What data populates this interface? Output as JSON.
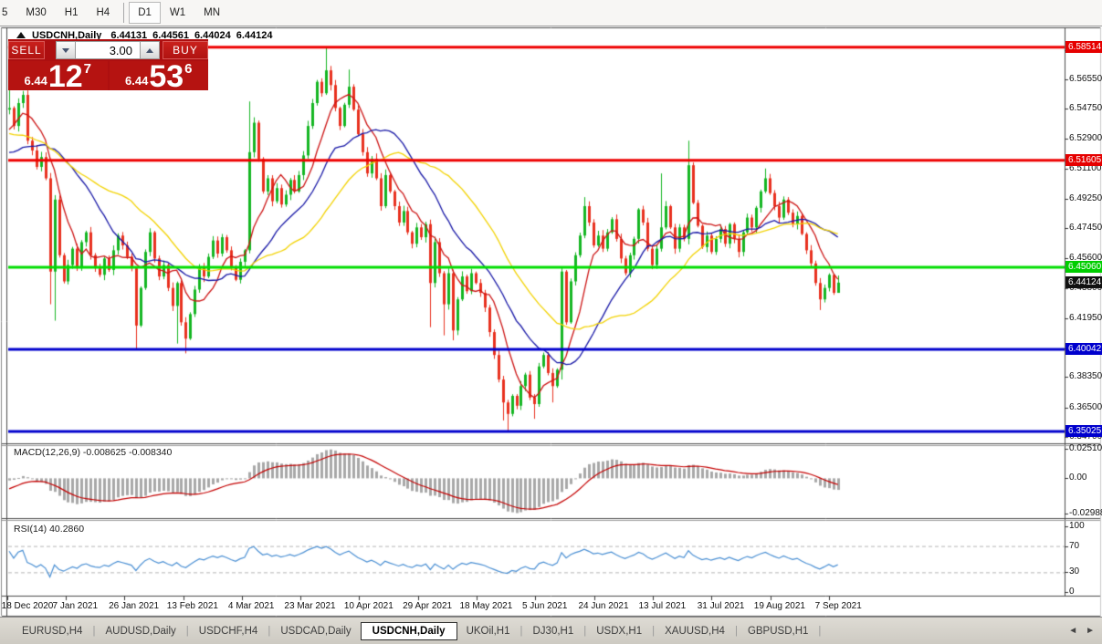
{
  "toolbar": {
    "items": [
      "5",
      "M30",
      "H1",
      "H4",
      "|",
      "D1",
      "W1",
      "MN"
    ],
    "active": "D1"
  },
  "chart_header": {
    "symbol": "USDCNH,Daily",
    "open": "6.44131",
    "high": "6.44561",
    "low": "6.44024",
    "close": "6.44124"
  },
  "trade_panel": {
    "sell_label": "SELL",
    "buy_label": "BUY",
    "volume": "3.00",
    "sell_price": {
      "prefix": "6.44",
      "main": "12",
      "pip": "7"
    },
    "buy_price": {
      "prefix": "6.44",
      "main": "53",
      "pip": "6"
    }
  },
  "price_axis": {
    "ticks": [
      "6.58350",
      "6.56550",
      "6.54750",
      "6.52900",
      "6.51100",
      "6.49250",
      "6.47450",
      "6.45600",
      "6.43800",
      "6.41950",
      "6.40100",
      "6.38350",
      "6.36500",
      "6.34700"
    ]
  },
  "level_badges": [
    {
      "text": "6.58514",
      "price": 6.58514,
      "color": "#e60000",
      "kind": "resistance"
    },
    {
      "text": "6.51605",
      "price": 6.51605,
      "color": "#e60000",
      "kind": "resistance"
    },
    {
      "text": "6.45060",
      "price": 6.4506,
      "color": "#00ce00",
      "kind": "pivot"
    },
    {
      "text": "6.44124",
      "price": 6.44124,
      "color": "#111111",
      "kind": "current"
    },
    {
      "text": "6.40042",
      "price": 6.40042,
      "color": "#0000cd",
      "kind": "support"
    },
    {
      "text": "6.35025",
      "price": 6.35025,
      "color": "#0000cd",
      "kind": "support"
    }
  ],
  "macd_panel": {
    "label": "MACD(12,26,9) -0.008625 -0.008340",
    "ticks": [
      {
        "text": "0.02510",
        "value": 0.0251
      },
      {
        "text": "0.00",
        "value": 0
      },
      {
        "text": "-0.02988",
        "value": -0.02988
      }
    ]
  },
  "rsi_panel": {
    "label": "RSI(14) 40.2860",
    "ticks": [
      {
        "text": "100",
        "value": 100
      },
      {
        "text": "70",
        "value": 70
      },
      {
        "text": "30",
        "value": 30
      },
      {
        "text": "0",
        "value": 0
      }
    ],
    "dashed_levels": [
      70,
      30
    ]
  },
  "date_axis": {
    "labels": [
      "18 Dec 2020",
      "7 Jan 2021",
      "26 Jan 2021",
      "13 Feb 2021",
      "4 Mar 2021",
      "23 Mar 2021",
      "10 Apr 2021",
      "29 Apr 2021",
      "18 May 2021",
      "5 Jun 2021",
      "24 Jun 2021",
      "13 Jul 2021",
      "31 Jul 2021",
      "19 Aug 2021",
      "7 Sep 2021"
    ]
  },
  "tabs": {
    "items": [
      "EURUSD,H4",
      "AUDUSD,Daily",
      "USDCHF,H4",
      "USDCAD,Daily",
      "USDCNH,Daily",
      "UKOil,H1",
      "DJ30,H1",
      "USDX,H1",
      "XAUUSD,H4",
      "GBPUSD,H1"
    ],
    "active": "USDCNH,Daily"
  },
  "chart_data": {
    "type": "candlestick",
    "symbol": "USDCNH",
    "timeframe": "Daily",
    "first_date": "18 Dec 2020",
    "last_date": "7 Sep 2021",
    "price_range_estimate": [
      6.3436,
      6.5973
    ],
    "current_price": 6.44124,
    "last_candle": {
      "open": 6.44131,
      "high": 6.44561,
      "low": 6.44024,
      "close": 6.44124
    },
    "closes": [
      6.548,
      6.537,
      6.551,
      6.556,
      6.528,
      6.522,
      6.512,
      6.518,
      6.505,
      6.448,
      6.492,
      6.458,
      6.442,
      6.452,
      6.462,
      6.45,
      6.466,
      6.472,
      6.458,
      6.45,
      6.446,
      6.456,
      6.449,
      6.461,
      6.47,
      6.464,
      6.457,
      6.45,
      6.415,
      6.438,
      6.46,
      6.472,
      6.456,
      6.445,
      6.452,
      6.438,
      6.427,
      6.441,
      6.417,
      6.407,
      6.422,
      6.437,
      6.451,
      6.445,
      6.457,
      6.467,
      6.459,
      6.469,
      6.461,
      6.451,
      6.443,
      6.454,
      6.461,
      6.521,
      6.539,
      6.517,
      6.497,
      6.505,
      6.491,
      6.499,
      6.489,
      6.495,
      6.504,
      6.497,
      6.507,
      6.519,
      6.537,
      6.551,
      6.564,
      6.557,
      6.571,
      6.562,
      6.548,
      6.537,
      6.55,
      6.561,
      6.547,
      6.532,
      6.521,
      6.508,
      6.517,
      6.505,
      6.488,
      6.507,
      6.497,
      6.488,
      6.478,
      6.485,
      6.472,
      6.465,
      6.475,
      6.469,
      6.477,
      6.441,
      6.466,
      6.447,
      6.428,
      6.447,
      6.412,
      6.431,
      6.445,
      6.436,
      6.447,
      6.441,
      6.435,
      6.426,
      6.411,
      6.397,
      6.382,
      6.368,
      6.361,
      6.372,
      6.366,
      6.378,
      6.385,
      6.371,
      6.367,
      6.39,
      6.397,
      6.386,
      6.378,
      6.388,
      6.448,
      6.417,
      6.442,
      6.458,
      6.47,
      6.488,
      6.478,
      6.464,
      6.47,
      6.462,
      6.472,
      6.48,
      6.468,
      6.456,
      6.447,
      6.458,
      6.468,
      6.486,
      6.478,
      6.462,
      6.452,
      6.462,
      6.475,
      6.488,
      6.475,
      6.462,
      6.475,
      6.468,
      6.513,
      6.49,
      6.476,
      6.463,
      6.47,
      6.46,
      6.468,
      6.474,
      6.465,
      6.477,
      6.468,
      6.46,
      6.472,
      6.481,
      6.475,
      6.487,
      6.497,
      6.505,
      6.496,
      6.488,
      6.481,
      6.492,
      6.484,
      6.477,
      6.482,
      6.471,
      6.461,
      6.453,
      6.441,
      6.431,
      6.438,
      6.446,
      6.435,
      6.44124
    ],
    "prehistory_closes": [
      6.668,
      6.662,
      6.655,
      6.65,
      6.645,
      6.638,
      6.632,
      6.628,
      6.62,
      6.615,
      6.612,
      6.605,
      6.6,
      6.598,
      6.595,
      6.59,
      6.588,
      6.585,
      6.582,
      6.58,
      6.578,
      6.575,
      6.572,
      6.57,
      6.568,
      6.566,
      6.565,
      6.562,
      6.56,
      6.558,
      6.556,
      6.554,
      6.552,
      6.55,
      6.548,
      6.546,
      6.544,
      6.542,
      6.54,
      6.538,
      6.535,
      6.532,
      6.528,
      6.524,
      6.52,
      6.515,
      6.51,
      6.505,
      6.5,
      6.496,
      6.498,
      6.502,
      6.508,
      6.515,
      6.522,
      6.528,
      6.535,
      6.54,
      6.544,
      6.547
    ],
    "wick_overrides": {
      "0": {
        "h": 6.572
      },
      "9": {
        "l": 6.428
      },
      "10": {
        "l": 6.418
      },
      "28": {
        "l": 6.401
      },
      "37": {
        "l": 6.404
      },
      "39": {
        "l": 6.398
      },
      "53": {
        "h": 6.552
      },
      "70": {
        "h": 6.5851
      },
      "75": {
        "h": 6.5715
      },
      "93": {
        "l": 6.414
      },
      "96": {
        "l": 6.409
      },
      "98": {
        "l": 6.406
      },
      "109": {
        "l": 6.357
      },
      "110": {
        "l": 6.35
      },
      "116": {
        "l": 6.358
      },
      "120": {
        "l": 6.368
      },
      "122": {
        "l": 6.382
      },
      "127": {
        "h": 6.4935
      },
      "144": {
        "h": 6.508
      },
      "150": {
        "h": 6.528
      },
      "167": {
        "h": 6.511
      },
      "179": {
        "l": 6.4245
      },
      "183": {
        "h": 6.44561,
        "l": 6.44024
      }
    },
    "horizontal_lines": [
      {
        "price": 6.58514,
        "color": "#ee0000",
        "width": 3
      },
      {
        "price": 6.51605,
        "color": "#ee0000",
        "width": 3
      },
      {
        "price": 6.4506,
        "color": "#00dd00",
        "width": 3
      },
      {
        "price": 6.40042,
        "color": "#0000cd",
        "width": 3
      },
      {
        "price": 6.35025,
        "color": "#0000cd",
        "width": 3
      }
    ],
    "moving_averages": [
      {
        "period": 8,
        "color": "#cc1414"
      },
      {
        "period": 20,
        "color": "#1717a6"
      },
      {
        "period": 34,
        "color": "#f2d200"
      }
    ],
    "macd": {
      "fast": 12,
      "slow": 26,
      "signal": 9,
      "last_values": [
        -0.008625,
        -0.00834
      ],
      "range": [
        -0.02988,
        0.0251
      ],
      "histogram_color": "#a8a8a8",
      "signal_color": "#c40000"
    },
    "rsi": {
      "period": 14,
      "last_value": 40.286,
      "range": [
        0,
        100
      ],
      "color": "#4a8fd3"
    },
    "colors": {
      "up": "#14b622",
      "down": "#e8311f",
      "background": "#ffffff"
    }
  }
}
